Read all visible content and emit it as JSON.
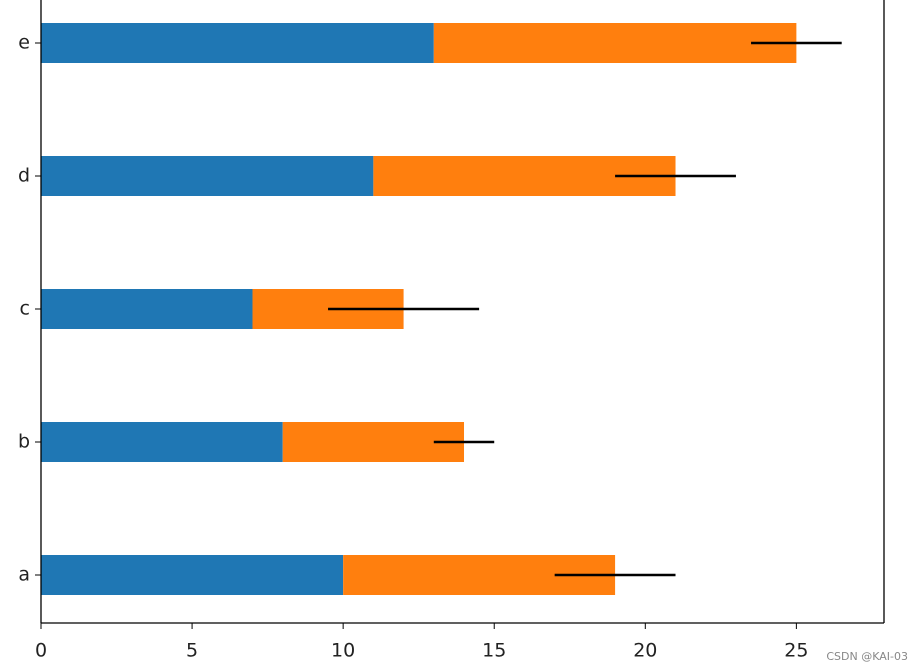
{
  "chart_data": {
    "type": "barh_stacked",
    "categories": [
      "a",
      "b",
      "c",
      "d",
      "e"
    ],
    "series": [
      {
        "color": "#1f77b4",
        "values": [
          10,
          8,
          7,
          11,
          13
        ]
      },
      {
        "color": "#ff7f0e",
        "values": [
          9,
          6,
          5,
          10,
          12
        ],
        "errors": [
          2,
          1,
          2.5,
          2,
          1.5
        ]
      }
    ],
    "xlim": [
      0,
      27.9
    ],
    "xticks": [
      0,
      5,
      10,
      15,
      20,
      25
    ],
    "watermark": "CSDN @KAI-03"
  }
}
